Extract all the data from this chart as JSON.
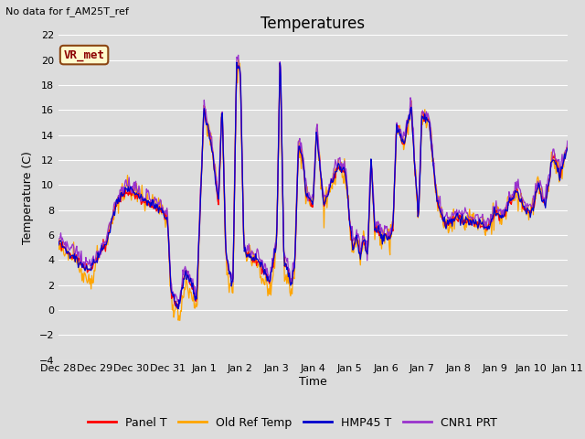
{
  "title": "Temperatures",
  "subtitle": "No data for f_AM25T_ref",
  "xlabel": "Time",
  "ylabel": "Temperature (C)",
  "ylim": [
    -4,
    22
  ],
  "yticks": [
    -4,
    -2,
    0,
    2,
    4,
    6,
    8,
    10,
    12,
    14,
    16,
    18,
    20,
    22
  ],
  "xtick_labels": [
    "Dec 28",
    "Dec 29",
    "Dec 30",
    "Dec 31",
    "Jan 1",
    "Jan 2",
    "Jan 3",
    "Jan 4",
    "Jan 5",
    "Jan 6",
    "Jan 7",
    "Jan 8",
    "Jan 9",
    "Jan 10",
    "Jan 11"
  ],
  "annotation_text": "VR_met",
  "colors": {
    "panel_t": "#FF0000",
    "old_ref_temp": "#FFA500",
    "hmp45_t": "#0000CD",
    "cnr1_prt": "#9932CC"
  },
  "legend_labels": [
    "Panel T",
    "Old Ref Temp",
    "HMP45 T",
    "CNR1 PRT"
  ],
  "background_color": "#DCDCDC",
  "title_fontsize": 12,
  "label_fontsize": 9,
  "tick_fontsize": 8
}
